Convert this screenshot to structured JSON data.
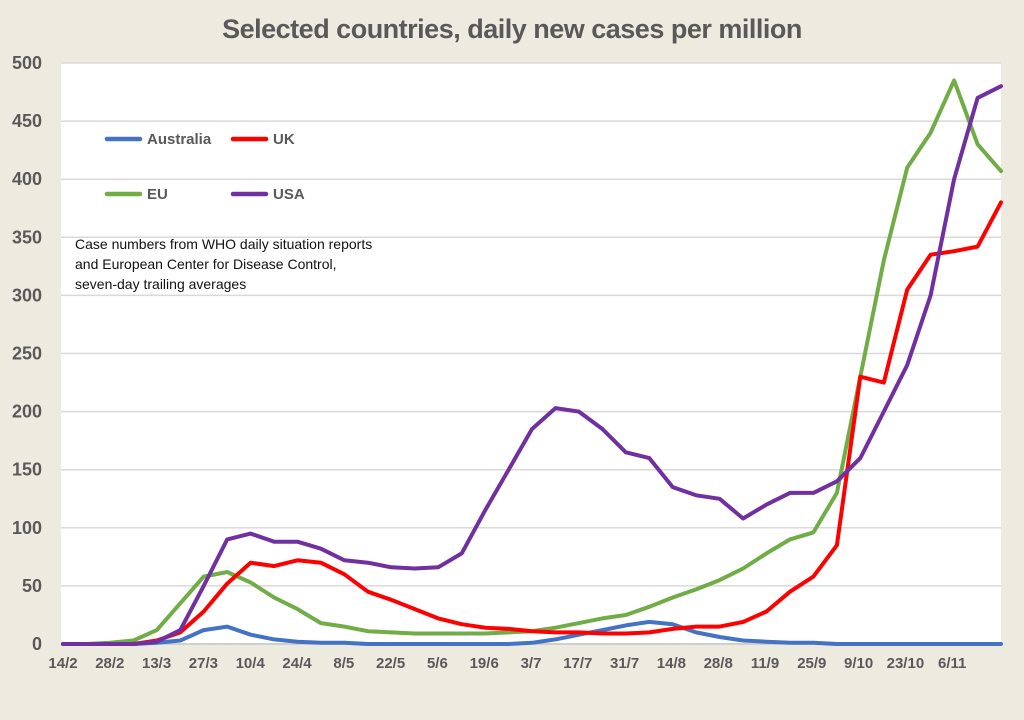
{
  "chart_data": {
    "type": "line",
    "title": "Selected countries, daily new cases per million",
    "xlabel": "",
    "ylabel": "",
    "ylim": [
      0,
      500
    ],
    "yticks": [
      0,
      50,
      100,
      150,
      200,
      250,
      300,
      350,
      400,
      450,
      500
    ],
    "grid": true,
    "legend_position": "top-left",
    "x_start_label": "14/2",
    "x_day_step": 7,
    "xtick_labels": [
      "14/2",
      "28/2",
      "13/3",
      "27/3",
      "10/4",
      "24/4",
      "8/5",
      "22/5",
      "5/6",
      "19/6",
      "3/7",
      "17/7",
      "31/7",
      "14/8",
      "28/8",
      "11/9",
      "25/9",
      "9/10",
      "23/10",
      "6/11"
    ],
    "note": "Case numbers from WHO daily situation reports and European Center for Disease Control, seven-day trailing averages",
    "series": [
      {
        "name": "Australia",
        "color": "#4472c4",
        "values": [
          0,
          0,
          0,
          0,
          1,
          3,
          12,
          15,
          8,
          4,
          2,
          1,
          1,
          0,
          0,
          0,
          0,
          0,
          0,
          0,
          1,
          4,
          8,
          12,
          16,
          19,
          17,
          10,
          6,
          3,
          2,
          1,
          1,
          0,
          0,
          0,
          0,
          0,
          0,
          0,
          0
        ]
      },
      {
        "name": "UK",
        "color": "#ff0000",
        "values": [
          0,
          0,
          0,
          0,
          3,
          10,
          28,
          52,
          70,
          67,
          72,
          70,
          60,
          45,
          38,
          30,
          22,
          17,
          14,
          13,
          11,
          10,
          10,
          9,
          9,
          10,
          13,
          15,
          15,
          19,
          28,
          45,
          58,
          85,
          230,
          225,
          305,
          335,
          338,
          342,
          380
        ]
      },
      {
        "name": "EU",
        "color": "#70ad47",
        "values": [
          0,
          0,
          1,
          3,
          12,
          35,
          58,
          62,
          53,
          40,
          30,
          18,
          15,
          11,
          10,
          9,
          9,
          9,
          9,
          10,
          11,
          14,
          18,
          22,
          25,
          32,
          40,
          47,
          55,
          65,
          78,
          90,
          96,
          130,
          230,
          330,
          410,
          440,
          485,
          430,
          407
        ]
      },
      {
        "name": "USA",
        "color": "#7030a0",
        "values": [
          0,
          0,
          0,
          0,
          2,
          12,
          50,
          90,
          95,
          88,
          88,
          82,
          72,
          70,
          66,
          65,
          66,
          78,
          115,
          150,
          185,
          203,
          200,
          185,
          165,
          160,
          135,
          128,
          125,
          108,
          120,
          130,
          130,
          140,
          160,
          200,
          240,
          300,
          400,
          470,
          480
        ]
      }
    ]
  }
}
